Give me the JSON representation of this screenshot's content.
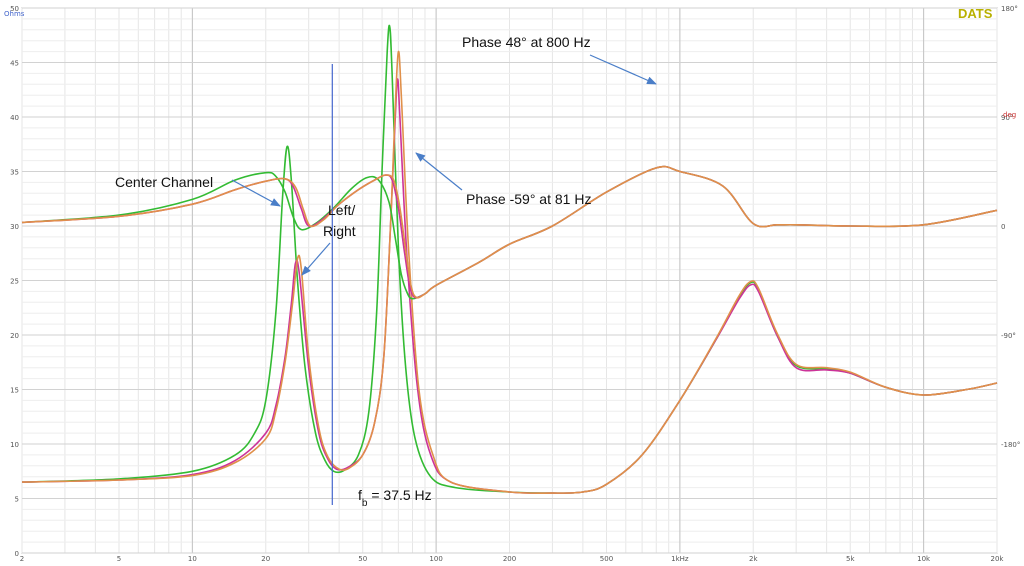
{
  "brand": "DATS",
  "chart_data": {
    "type": "line",
    "xscale": "log",
    "xlim": [
      2,
      20000
    ],
    "ylim": [
      0,
      50
    ],
    "y2lim": [
      -270,
      180
    ],
    "y_unit": "Ohms",
    "y2_unit": "deg",
    "x_ticks": [
      {
        "value": 2,
        "label": "2"
      },
      {
        "value": 5,
        "label": "5"
      },
      {
        "value": 10,
        "label": "10"
      },
      {
        "value": 20,
        "label": "20"
      },
      {
        "value": 50,
        "label": "50"
      },
      {
        "value": 100,
        "label": "100"
      },
      {
        "value": 200,
        "label": "200"
      },
      {
        "value": 500,
        "label": "500"
      },
      {
        "value": 1000,
        "label": "1kHz"
      },
      {
        "value": 2000,
        "label": "2k"
      },
      {
        "value": 5000,
        "label": "5k"
      },
      {
        "value": 10000,
        "label": "10k"
      },
      {
        "value": 20000,
        "label": "20k"
      }
    ],
    "y_ticks": [
      {
        "value": 0,
        "label": "0"
      },
      {
        "value": 5,
        "label": "5"
      },
      {
        "value": 10,
        "label": "10"
      },
      {
        "value": 15,
        "label": "15"
      },
      {
        "value": 20,
        "label": "20"
      },
      {
        "value": 25,
        "label": "25"
      },
      {
        "value": 30,
        "label": "30"
      },
      {
        "value": 35,
        "label": "35"
      },
      {
        "value": 40,
        "label": "40"
      },
      {
        "value": 45,
        "label": "45"
      },
      {
        "value": 50,
        "label": "50"
      }
    ],
    "y2_ticks": [
      {
        "value": 180,
        "label": "180°"
      },
      {
        "value": 90,
        "label": "90°"
      },
      {
        "value": 0,
        "label": "0"
      },
      {
        "value": -90,
        "label": "-90°"
      },
      {
        "value": -180,
        "label": "-180°"
      }
    ],
    "grid": true,
    "series": [
      {
        "axis": "impedance",
        "color": "#33bb33",
        "points": [
          [
            2,
            6.5
          ],
          [
            5,
            6.8
          ],
          [
            10,
            7.5
          ],
          [
            15,
            9
          ],
          [
            18,
            11
          ],
          [
            20,
            14
          ],
          [
            22,
            22
          ],
          [
            23.5,
            33
          ],
          [
            24.5,
            37.3
          ],
          [
            25.5,
            34
          ],
          [
            27,
            25
          ],
          [
            29,
            17
          ],
          [
            32,
            11
          ],
          [
            35,
            8.5
          ],
          [
            38,
            7.5
          ],
          [
            42,
            7.6
          ],
          [
            48,
            9
          ],
          [
            53,
            13
          ],
          [
            57,
            22
          ],
          [
            60,
            35
          ],
          [
            63,
            46
          ],
          [
            64.5,
            48.3
          ],
          [
            66,
            44
          ],
          [
            70,
            28
          ],
          [
            75,
            17
          ],
          [
            82,
            10.5
          ],
          [
            95,
            7
          ],
          [
            120,
            6
          ],
          [
            200,
            5.6
          ],
          [
            300,
            5.5
          ],
          [
            400,
            5.6
          ],
          [
            500,
            6.3
          ],
          [
            700,
            9
          ],
          [
            1000,
            14
          ],
          [
            1400,
            19.5
          ],
          [
            1750,
            23.5
          ],
          [
            1950,
            24.8
          ],
          [
            2100,
            24.2
          ],
          [
            2500,
            20
          ],
          [
            3000,
            17.2
          ],
          [
            4000,
            16.9
          ],
          [
            5000,
            16.5
          ],
          [
            7000,
            15.2
          ],
          [
            10000,
            14.5
          ],
          [
            15000,
            15
          ],
          [
            20000,
            15.6
          ]
        ]
      },
      {
        "axis": "impedance",
        "color": "#cc3399",
        "points": [
          [
            2,
            6.5
          ],
          [
            5,
            6.7
          ],
          [
            10,
            7.2
          ],
          [
            15,
            8.5
          ],
          [
            20,
            11
          ],
          [
            22,
            13.5
          ],
          [
            24,
            18
          ],
          [
            25.5,
            23
          ],
          [
            26.5,
            26.6
          ],
          [
            27.5,
            25.5
          ],
          [
            30,
            17
          ],
          [
            33,
            11
          ],
          [
            36,
            8.6
          ],
          [
            39,
            7.7
          ],
          [
            43,
            7.8
          ],
          [
            50,
            9
          ],
          [
            56,
            12
          ],
          [
            61,
            18
          ],
          [
            65,
            30
          ],
          [
            68,
            40
          ],
          [
            69.5,
            43.5
          ],
          [
            71,
            40
          ],
          [
            76,
            27
          ],
          [
            84,
            15
          ],
          [
            95,
            9
          ],
          [
            115,
            6.5
          ],
          [
            200,
            5.6
          ],
          [
            300,
            5.5
          ],
          [
            400,
            5.6
          ],
          [
            500,
            6.3
          ],
          [
            700,
            9
          ],
          [
            1000,
            14
          ],
          [
            1400,
            19.5
          ],
          [
            1750,
            23.3
          ],
          [
            1950,
            24.6
          ],
          [
            2100,
            24
          ],
          [
            2500,
            20
          ],
          [
            3000,
            17
          ],
          [
            4000,
            16.8
          ],
          [
            5000,
            16.5
          ],
          [
            7000,
            15.2
          ],
          [
            10000,
            14.5
          ],
          [
            15000,
            15
          ],
          [
            20000,
            15.6
          ]
        ]
      },
      {
        "axis": "impedance",
        "color": "#e0904a",
        "points": [
          [
            2,
            6.5
          ],
          [
            5,
            6.7
          ],
          [
            10,
            7.1
          ],
          [
            15,
            8.3
          ],
          [
            20,
            10.5
          ],
          [
            22,
            13
          ],
          [
            24,
            17.5
          ],
          [
            25.8,
            23
          ],
          [
            27,
            27
          ],
          [
            28,
            26
          ],
          [
            30,
            18
          ],
          [
            33,
            11.5
          ],
          [
            36,
            8.8
          ],
          [
            40,
            7.7
          ],
          [
            44,
            7.8
          ],
          [
            50,
            9
          ],
          [
            56,
            12
          ],
          [
            61,
            18
          ],
          [
            65,
            30
          ],
          [
            68,
            41
          ],
          [
            70,
            46
          ],
          [
            72,
            42
          ],
          [
            77,
            28
          ],
          [
            85,
            15
          ],
          [
            97,
            9
          ],
          [
            115,
            6.5
          ],
          [
            200,
            5.6
          ],
          [
            300,
            5.5
          ],
          [
            400,
            5.6
          ],
          [
            500,
            6.3
          ],
          [
            700,
            9
          ],
          [
            1000,
            14
          ],
          [
            1400,
            19.6
          ],
          [
            1750,
            23.6
          ],
          [
            1950,
            24.9
          ],
          [
            2100,
            24.3
          ],
          [
            2500,
            20.2
          ],
          [
            3000,
            17.3
          ],
          [
            4000,
            17
          ],
          [
            5000,
            16.6
          ],
          [
            7000,
            15.2
          ],
          [
            10000,
            14.5
          ],
          [
            15000,
            15
          ],
          [
            20000,
            15.6
          ]
        ]
      },
      {
        "axis": "phase",
        "color": "#33bb33",
        "points": [
          [
            2,
            3
          ],
          [
            5,
            9
          ],
          [
            10,
            22
          ],
          [
            15,
            38
          ],
          [
            20,
            44
          ],
          [
            22,
            41
          ],
          [
            24,
            28
          ],
          [
            26,
            7
          ],
          [
            28,
            -3
          ],
          [
            32,
            2
          ],
          [
            38,
            15
          ],
          [
            45,
            31
          ],
          [
            52,
            40
          ],
          [
            58,
            38
          ],
          [
            64,
            20
          ],
          [
            68,
            -10
          ],
          [
            72,
            -40
          ],
          [
            76,
            -55
          ],
          [
            80,
            -60
          ],
          [
            90,
            -56
          ],
          [
            100,
            -49
          ],
          [
            150,
            -30
          ],
          [
            200,
            -15
          ],
          [
            300,
            0
          ],
          [
            500,
            28
          ],
          [
            800,
            48
          ],
          [
            1000,
            45
          ],
          [
            1500,
            33
          ],
          [
            2000,
            2
          ],
          [
            2500,
            1
          ],
          [
            3000,
            1
          ],
          [
            5000,
            0
          ],
          [
            10000,
            1
          ],
          [
            20000,
            13
          ]
        ]
      },
      {
        "axis": "phase",
        "color": "#cc3399",
        "points": [
          [
            2,
            3
          ],
          [
            5,
            8
          ],
          [
            10,
            18
          ],
          [
            15,
            30
          ],
          [
            20,
            37
          ],
          [
            24,
            39
          ],
          [
            26,
            32
          ],
          [
            28,
            14
          ],
          [
            30,
            0
          ],
          [
            34,
            5
          ],
          [
            40,
            18
          ],
          [
            48,
            30
          ],
          [
            56,
            38
          ],
          [
            62,
            42
          ],
          [
            66,
            38
          ],
          [
            70,
            15
          ],
          [
            74,
            -20
          ],
          [
            78,
            -50
          ],
          [
            82,
            -59
          ],
          [
            90,
            -56
          ],
          [
            100,
            -49
          ],
          [
            150,
            -30
          ],
          [
            200,
            -15
          ],
          [
            300,
            0
          ],
          [
            500,
            28
          ],
          [
            800,
            48
          ],
          [
            1000,
            45
          ],
          [
            1500,
            33
          ],
          [
            2000,
            2
          ],
          [
            2500,
            1
          ],
          [
            3000,
            1
          ],
          [
            5000,
            0
          ],
          [
            10000,
            1
          ],
          [
            20000,
            13
          ]
        ]
      },
      {
        "axis": "phase",
        "color": "#e0904a",
        "points": [
          [
            2,
            3
          ],
          [
            5,
            8
          ],
          [
            10,
            18
          ],
          [
            15,
            30
          ],
          [
            20,
            37
          ],
          [
            24,
            39
          ],
          [
            26.5,
            32
          ],
          [
            28.5,
            14
          ],
          [
            30.5,
            0
          ],
          [
            34.5,
            5
          ],
          [
            40,
            18
          ],
          [
            48,
            30
          ],
          [
            56,
            38
          ],
          [
            62,
            42
          ],
          [
            67,
            38
          ],
          [
            71,
            15
          ],
          [
            75,
            -20
          ],
          [
            79,
            -50
          ],
          [
            83,
            -59
          ],
          [
            90,
            -56
          ],
          [
            100,
            -49
          ],
          [
            150,
            -30
          ],
          [
            200,
            -15
          ],
          [
            300,
            0
          ],
          [
            500,
            28
          ],
          [
            800,
            48
          ],
          [
            1000,
            45
          ],
          [
            1500,
            33
          ],
          [
            2000,
            2
          ],
          [
            2500,
            1
          ],
          [
            3000,
            1
          ],
          [
            5000,
            0
          ],
          [
            10000,
            1
          ],
          [
            20000,
            13
          ]
        ]
      }
    ],
    "marker_line": {
      "x": 37.5,
      "color": "#4466cc"
    },
    "annotations": [
      {
        "text": "Phase 48° at 800 Hz",
        "from": [
          590,
          55
        ],
        "to": [
          658,
          84
        ]
      },
      {
        "text": "Phase -59° at 81 Hz",
        "from": [
          462,
          190
        ],
        "to": [
          414,
          152
        ]
      },
      {
        "text": "Center Channel",
        "from": [
          232,
          180
        ],
        "to": [
          281,
          206
        ]
      },
      {
        "text": "Left/",
        "from": [
          330,
          240
        ],
        "to": [
          302,
          275
        ]
      },
      {
        "text": "Right",
        "from": null,
        "to": null
      }
    ],
    "fb_label": {
      "main": "f",
      "sub": "b",
      "rest": " = 37.5 Hz"
    }
  }
}
